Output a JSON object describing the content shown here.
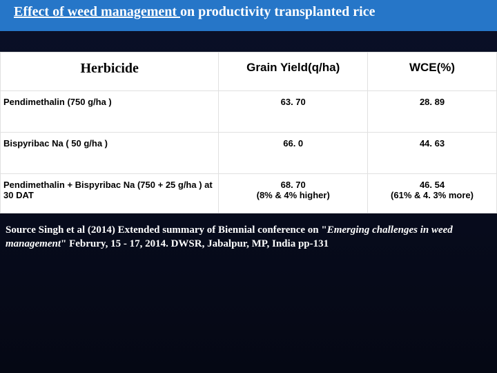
{
  "title": {
    "underlined": "Effect of weed management ",
    "rest": " on productivity  transplanted rice"
  },
  "table": {
    "headers": {
      "herbicide": "Herbicide",
      "yield": "Grain  Yield(q/ha)",
      "wce": "WCE(%)"
    },
    "rows": [
      {
        "herb": "Pendimethalin  (750 g/ha )",
        "yield": "63. 70",
        "wce": "28. 89"
      },
      {
        "herb": " Bispyribac Na ( 50 g/ha )",
        "yield": "66. 0",
        "wce": "44. 63"
      },
      {
        "herb": "Pendimethalin + Bispyribac Na (750 + 25 g/ha ) at 30 DAT",
        "yield": "68. 70",
        "yield_sub": "(8% & 4% higher)",
        "wce": "46. 54",
        "wce_sub": "(61% & 4. 3% more)"
      }
    ]
  },
  "source": {
    "line1_pre": " Source  Singh et al  (2014) Extended summary of Biennial conference on \"",
    "line1_italic": "Emerging challenges in weed management",
    "line1_post": "\"   Februry, 15 - 17, 2014. DWSR, Jabalpur, MP, India pp-131"
  }
}
